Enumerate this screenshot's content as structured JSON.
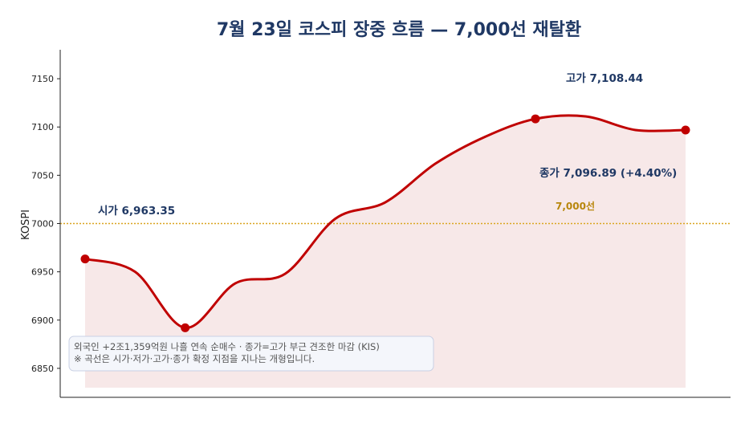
{
  "chart_data": {
    "type": "line",
    "title": "7월 23일 코스피 장중 흐름 — 7,000선 재탈환",
    "ylabel": "KOSPI",
    "xlabel": "",
    "ylim": [
      6820,
      7180
    ],
    "yticks": [
      6850,
      6900,
      6950,
      7000,
      7050,
      7100,
      7150
    ],
    "grid": false,
    "x": [
      0,
      1,
      2,
      3,
      4,
      5,
      6,
      7,
      8,
      9,
      10,
      11,
      12
    ],
    "y": [
      6963.35,
      6950,
      6892,
      6938,
      6948,
      7005,
      7022,
      7062,
      7090,
      7108.44,
      7111,
      7096.89,
      7096.89
    ],
    "markers": [
      {
        "x": 0,
        "y": 6963.35
      },
      {
        "x": 2,
        "y": 6892
      },
      {
        "x": 9,
        "y": 7108.44
      },
      {
        "x": 12,
        "y": 7096.89
      }
    ],
    "reference_line": {
      "y": 7000,
      "label": "7,000선",
      "color": "#daa520"
    },
    "annotations": {
      "open": "시가 6,963.35",
      "high": "고가 7,108.44",
      "close": "종가 7,096.89 (+4.40%)"
    },
    "note_lines": [
      "외국인 +2조1,359억원 나흘 연속 순매수 · 종가=고가 부근 견조한 마감 (KIS)",
      "※ 곡선은 시가·저가·고가·종가 확정 지점을 지나는 개형입니다."
    ],
    "colors": {
      "line": "#c00000",
      "fill": "#f6e6e6",
      "text": "#1f3864",
      "reference": "#daa520"
    }
  }
}
